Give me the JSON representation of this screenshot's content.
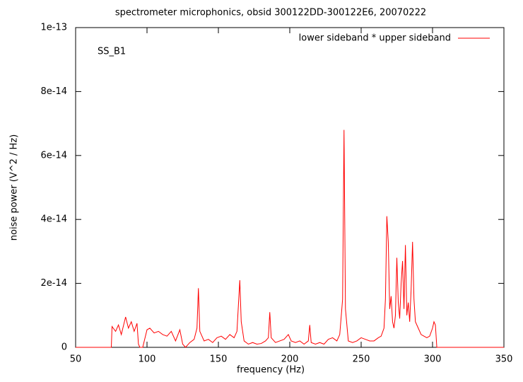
{
  "chart_data": {
    "type": "line",
    "title": "spectrometer microphonics, obsid 300122DD-300122E6, 20070222",
    "xlabel": "frequency (Hz)",
    "ylabel": "noise power (V^2 / Hz)",
    "annotation": "SS_B1",
    "legend": "upper right",
    "xlim": [
      50,
      350
    ],
    "xticks": [
      50,
      100,
      150,
      200,
      250,
      300,
      350
    ],
    "ylim": [
      0,
      1e-13
    ],
    "yticks": [
      0,
      2e-14,
      4e-14,
      6e-14,
      8e-14,
      1e-13
    ],
    "x": [
      50,
      75,
      75.5,
      78,
      80,
      82,
      85,
      87,
      89,
      91,
      93,
      94,
      95,
      97,
      100,
      102,
      105,
      108,
      111,
      114,
      117,
      120,
      123,
      125,
      127,
      130,
      133,
      135,
      136,
      137,
      140,
      143,
      146,
      149,
      152,
      155,
      158,
      161,
      163,
      165,
      166,
      168,
      171,
      174,
      177,
      180,
      183,
      185,
      186,
      187,
      190,
      193,
      196,
      199,
      201,
      204,
      207,
      210,
      213,
      214,
      215,
      218,
      221,
      224,
      227,
      230,
      233,
      235,
      237,
      238,
      239,
      241,
      244,
      247,
      250,
      253,
      256,
      259,
      262,
      264,
      266,
      267,
      268,
      269,
      270,
      271,
      272,
      273,
      274,
      275,
      276,
      277,
      278,
      279,
      280,
      281,
      282,
      283,
      284,
      285,
      286,
      287,
      288,
      290,
      292,
      294,
      296,
      298,
      300,
      301,
      302,
      303,
      350
    ],
    "series": [
      {
        "name": "lower sideband * upper sideband",
        "color": "#ff0000",
        "values": [
          0,
          0,
          6.5e-15,
          5e-15,
          7e-15,
          4e-15,
          9.5e-15,
          6e-15,
          8e-15,
          5e-15,
          7.5e-15,
          1e-15,
          0,
          0,
          5.5e-15,
          6e-15,
          4.5e-15,
          5e-15,
          4e-15,
          3.5e-15,
          5e-15,
          2e-15,
          5.5e-15,
          1e-15,
          0,
          1.5e-15,
          2.5e-15,
          6e-15,
          1.85e-14,
          5e-15,
          2e-15,
          2.5e-15,
          1.5e-15,
          3e-15,
          3.5e-15,
          2.5e-15,
          4e-15,
          3e-15,
          5e-15,
          2.1e-14,
          8e-15,
          2e-15,
          1e-15,
          1.5e-15,
          1e-15,
          1.2e-15,
          2e-15,
          3e-15,
          1.1e-14,
          3e-15,
          1.5e-15,
          2e-15,
          2.5e-15,
          4e-15,
          2e-15,
          1.5e-15,
          2e-15,
          1e-15,
          2e-15,
          7e-15,
          1.5e-15,
          1e-15,
          1.5e-15,
          1e-15,
          2.5e-15,
          3e-15,
          2e-15,
          4e-15,
          1.5e-14,
          6.8e-14,
          1.2e-14,
          2e-15,
          1.5e-15,
          2e-15,
          3e-15,
          2.5e-15,
          2e-15,
          2e-15,
          3e-15,
          3.5e-15,
          6e-15,
          1.5e-14,
          4.1e-14,
          3.3e-14,
          1.2e-14,
          1.6e-14,
          8e-15,
          6e-15,
          1e-14,
          2.8e-14,
          1.4e-14,
          9e-15,
          2e-14,
          2.7e-14,
          1.2e-14,
          3.2e-14,
          1e-14,
          1.4e-14,
          8e-15,
          1.8e-14,
          3.3e-14,
          1.5e-14,
          8e-15,
          6e-15,
          4e-15,
          3.5e-15,
          3e-15,
          3.5e-15,
          6e-15,
          8e-15,
          7e-15,
          0,
          0
        ]
      }
    ]
  }
}
